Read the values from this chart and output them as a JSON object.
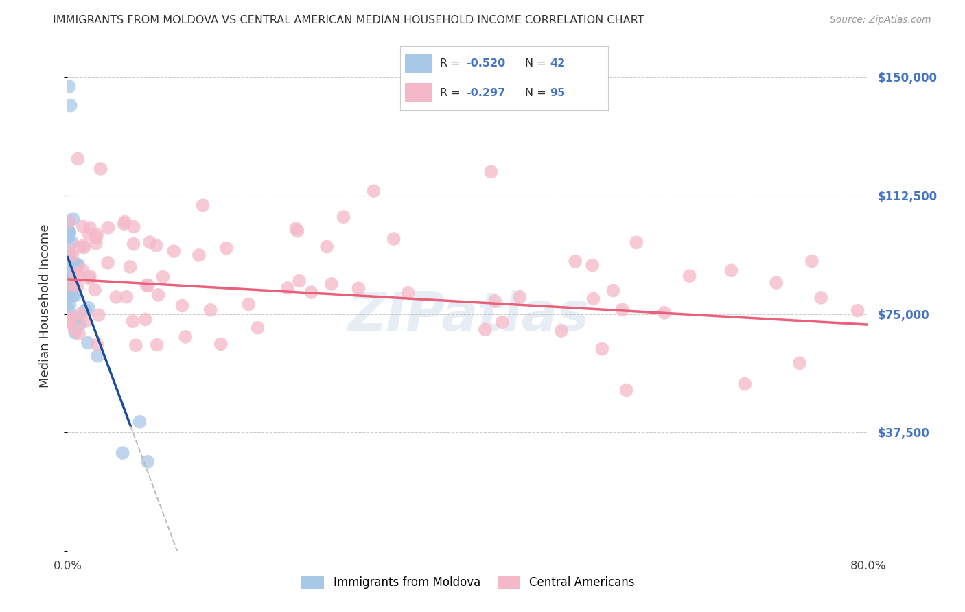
{
  "title": "IMMIGRANTS FROM MOLDOVA VS CENTRAL AMERICAN MEDIAN HOUSEHOLD INCOME CORRELATION CHART",
  "source": "Source: ZipAtlas.com",
  "ylabel": "Median Household Income",
  "xmin": 0.0,
  "xmax": 0.8,
  "ymin": 0,
  "ymax": 155000,
  "yticks": [
    0,
    37500,
    75000,
    112500,
    150000
  ],
  "ytick_labels": [
    "",
    "$37,500",
    "$75,000",
    "$112,500",
    "$150,000"
  ],
  "xticks": [
    0.0,
    0.1,
    0.2,
    0.3,
    0.4,
    0.5,
    0.6,
    0.7,
    0.8
  ],
  "xtick_labels": [
    "0.0%",
    "",
    "",
    "",
    "",
    "",
    "",
    "",
    "80.0%"
  ],
  "blue_R": -0.52,
  "blue_N": 42,
  "pink_R": -0.297,
  "pink_N": 95,
  "blue_scatter_color": "#A8C8E8",
  "pink_scatter_color": "#F5B8C8",
  "blue_line_color": "#1A4D9B",
  "pink_line_color": "#E8607A",
  "dash_line_color": "#BBBBBB",
  "background_color": "#FFFFFF",
  "grid_color": "#CCCCCC",
  "right_tick_color": "#4472C4",
  "watermark": "ZIPatlas",
  "legend_label_blue": "Immigrants from Moldova",
  "legend_label_pink": "Central Americans",
  "blue_slope": -850000,
  "blue_intercept": 93000,
  "blue_line_x_start": 0.0,
  "blue_line_x_solid_end": 0.063,
  "blue_line_x_dash_end": 0.115,
  "pink_slope": -18000,
  "pink_intercept": 86000,
  "pink_line_x_start": 0.0,
  "pink_line_x_end": 0.8
}
